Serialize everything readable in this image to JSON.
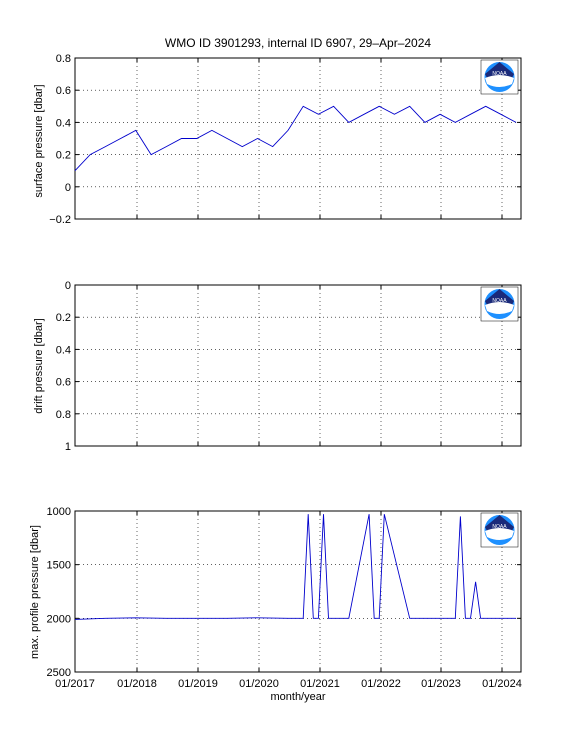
{
  "figure": {
    "title": "WMO ID 3901293, internal ID 6907, 29–Apr–2024",
    "xlabel": "month/year",
    "x_ticks": [
      "01/2017",
      "01/2018",
      "01/2019",
      "01/2020",
      "01/2021",
      "01/2022",
      "01/2023",
      "01/2024"
    ]
  },
  "colors": {
    "line": "#0000cc",
    "axes": "#000000",
    "grid": "#000000",
    "noaa_navy": "#1a2a7a",
    "noaa_blue": "#1e90ff",
    "noaa_white": "#ffffff"
  },
  "logo": {
    "text": "NOAA",
    "icon": "noaa-logo-icon"
  },
  "chart_data": [
    {
      "type": "line",
      "ylabel": "surface pressure [dbar]",
      "ylim": [
        -0.2,
        0.8
      ],
      "yticks": [
        "−0.2",
        "0",
        "0.2",
        "0.4",
        "0.6",
        "0.8"
      ],
      "grid": true,
      "x": [
        "2017-01",
        "2017-04",
        "2017-07",
        "2017-10",
        "2018-01",
        "2018-04",
        "2018-07",
        "2018-10",
        "2019-01",
        "2019-04",
        "2019-07",
        "2019-10",
        "2020-01",
        "2020-04",
        "2020-07",
        "2020-10",
        "2021-01",
        "2021-04",
        "2021-07",
        "2021-10",
        "2022-01",
        "2022-04",
        "2022-07",
        "2022-10",
        "2023-01",
        "2023-04",
        "2023-07",
        "2023-10",
        "2024-01",
        "2024-04"
      ],
      "series": [
        {
          "values": [
            0.1,
            0.2,
            0.25,
            0.3,
            0.35,
            0.2,
            0.25,
            0.3,
            0.3,
            0.35,
            0.3,
            0.25,
            0.3,
            0.25,
            0.35,
            0.5,
            0.45,
            0.5,
            0.4,
            0.45,
            0.5,
            0.45,
            0.5,
            0.4,
            0.45,
            0.4,
            0.45,
            0.5,
            0.45,
            0.4
          ]
        }
      ]
    },
    {
      "type": "line",
      "ylabel": "drift pressure [dbar]",
      "ylim": [
        0,
        1
      ],
      "y_reversed": true,
      "yticks": [
        "0",
        "0.2",
        "0.4",
        "0.6",
        "0.8",
        "1"
      ],
      "grid": true,
      "series": []
    },
    {
      "type": "line",
      "ylabel": "max. profile pressure [dbar]",
      "ylim": [
        1000,
        2500
      ],
      "y_reversed": true,
      "yticks": [
        "1000",
        "1500",
        "2000",
        "2500"
      ],
      "grid": true,
      "x": [
        "2017-01",
        "2017-07",
        "2018-01",
        "2018-07",
        "2019-01",
        "2019-07",
        "2020-01",
        "2020-07",
        "2020-10",
        "2020-11",
        "2020-12",
        "2021-01",
        "2021-02",
        "2021-03",
        "2021-07",
        "2021-11",
        "2021-12",
        "2022-01",
        "2022-02",
        "2022-07",
        "2023-01",
        "2023-04",
        "2023-05",
        "2023-06",
        "2023-07",
        "2023-08",
        "2023-09",
        "2024-01",
        "2024-04"
      ],
      "series": [
        {
          "values": [
            2010,
            2000,
            1995,
            2000,
            2000,
            2000,
            1995,
            2000,
            2000,
            1030,
            2000,
            2000,
            1030,
            2000,
            2000,
            1030,
            2000,
            2000,
            1030,
            2000,
            2000,
            2000,
            1050,
            2000,
            2000,
            1660,
            2000,
            2000,
            2000
          ]
        }
      ]
    }
  ]
}
